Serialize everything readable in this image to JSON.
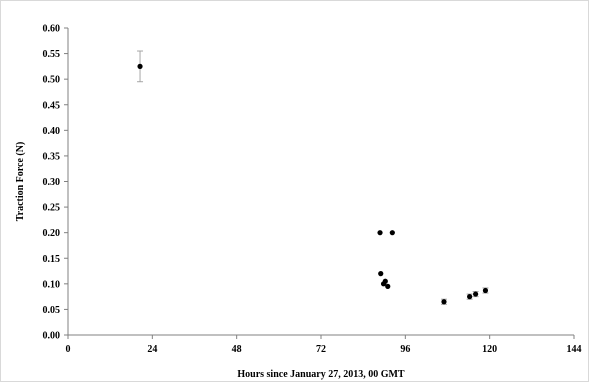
{
  "chart_data": {
    "type": "scatter",
    "title": "",
    "xlabel": "Hours since January 27, 2013, 00 GMT",
    "ylabel": "Traction Force (N)",
    "xlim": [
      0,
      144
    ],
    "ylim": [
      0,
      0.6
    ],
    "x_ticks": [
      0,
      24,
      48,
      72,
      96,
      120,
      144
    ],
    "y_ticks": [
      0,
      0.05,
      0.1,
      0.15,
      0.2,
      0.25,
      0.3,
      0.35,
      0.4,
      0.45,
      0.5,
      0.55,
      0.6
    ],
    "x_tick_labels": [
      "0",
      "24",
      "48",
      "72",
      "96",
      "120",
      "144"
    ],
    "y_tick_labels": [
      "0.00",
      "0.05",
      "0.10",
      "0.15",
      "0.20",
      "0.25",
      "0.30",
      "0.35",
      "0.40",
      "0.45",
      "0.50",
      "0.55",
      "0.60"
    ],
    "grid": false,
    "legend": "none",
    "marker_color": "#000000",
    "error_bar_color": "#a6a6a6",
    "axis_color": "#808080",
    "points": [
      {
        "x": 20.5,
        "y": 0.525,
        "err": 0.03
      },
      {
        "x": 88.8,
        "y": 0.2,
        "err": 0
      },
      {
        "x": 92.3,
        "y": 0.2,
        "err": 0
      },
      {
        "x": 89.0,
        "y": 0.12,
        "err": 0
      },
      {
        "x": 89.8,
        "y": 0.1,
        "err": 0
      },
      {
        "x": 90.3,
        "y": 0.105,
        "err": 0
      },
      {
        "x": 91.0,
        "y": 0.095,
        "err": 0
      },
      {
        "x": 107.0,
        "y": 0.065,
        "err": 0.005
      },
      {
        "x": 114.3,
        "y": 0.075,
        "err": 0.005
      },
      {
        "x": 116.0,
        "y": 0.08,
        "err": 0.005
      },
      {
        "x": 118.8,
        "y": 0.087,
        "err": 0.005
      }
    ]
  }
}
